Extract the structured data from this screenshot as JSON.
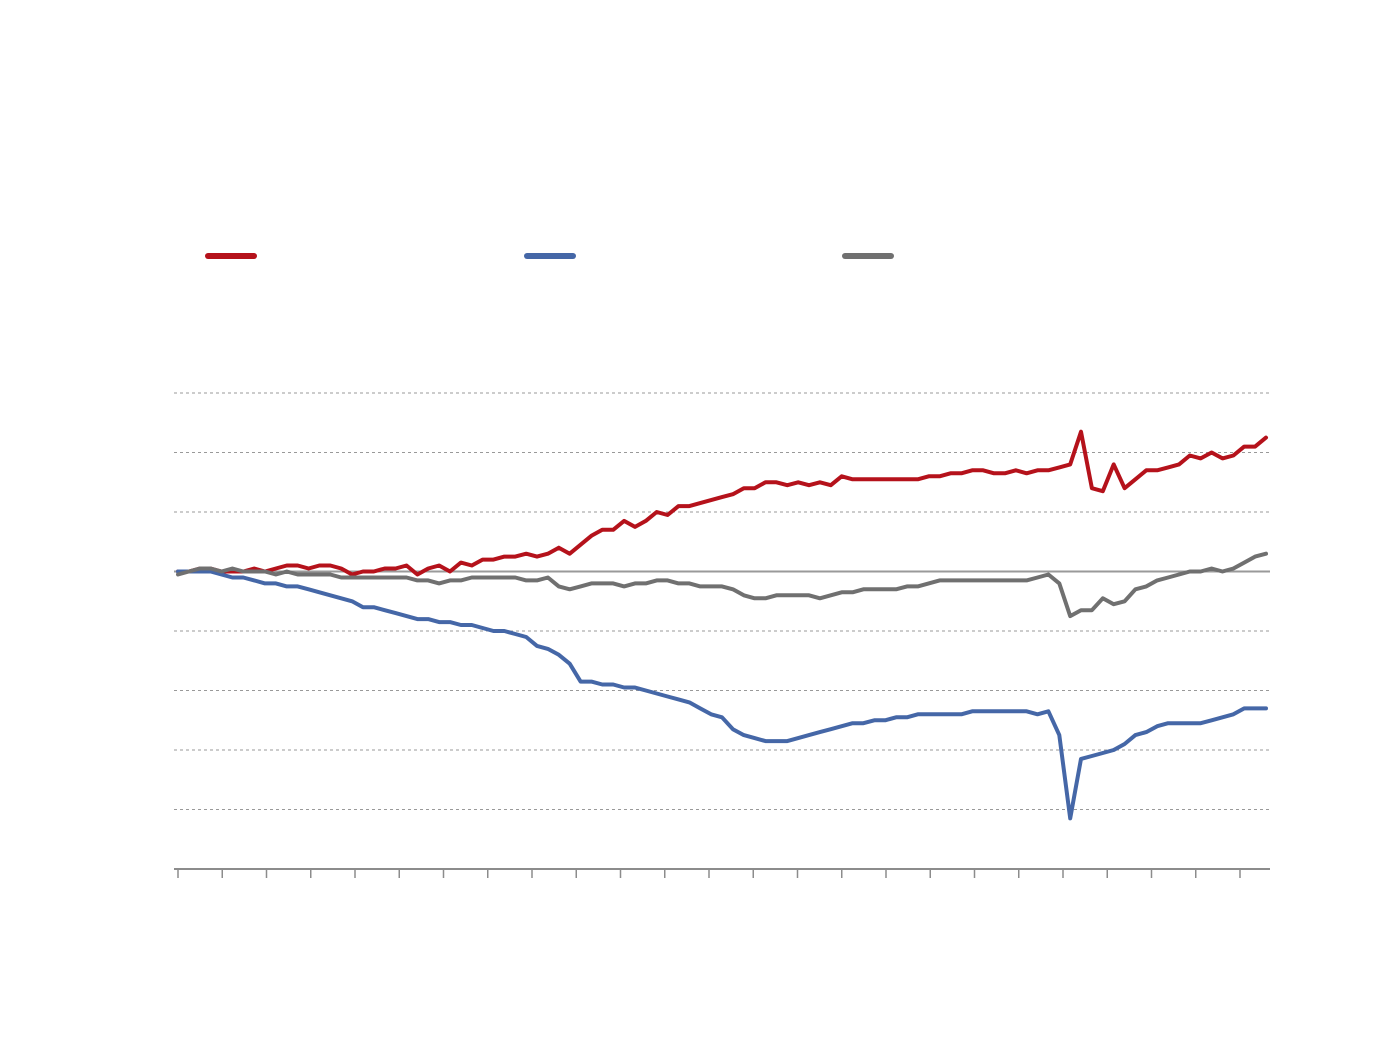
{
  "chart_data": {
    "type": "line",
    "title": "",
    "xlabel": "",
    "ylabel": "",
    "ylim": [
      -5,
      3
    ],
    "ygrid": [
      -4,
      -3,
      -2,
      -1,
      1,
      2,
      3
    ],
    "zero_line": 0,
    "x_ticks": 25,
    "grid": true,
    "legend_position": "top",
    "colors": {
      "gridline": "#999999",
      "zero_line": "#9a9a9a",
      "axis": "#8c8c8c"
    },
    "series": [
      {
        "color": "#b5121b",
        "values": [
          0,
          0,
          0.05,
          0.05,
          0,
          0,
          0,
          0.05,
          0,
          0.05,
          0.1,
          0.1,
          0.05,
          0.1,
          0.1,
          0.05,
          -0.05,
          0,
          0,
          0.05,
          0.05,
          0.1,
          -0.05,
          0.05,
          0.1,
          0,
          0.15,
          0.1,
          0.2,
          0.2,
          0.25,
          0.25,
          0.3,
          0.25,
          0.3,
          0.4,
          0.3,
          0.45,
          0.6,
          0.7,
          0.7,
          0.85,
          0.75,
          0.85,
          1.0,
          0.95,
          1.1,
          1.1,
          1.15,
          1.2,
          1.25,
          1.3,
          1.4,
          1.4,
          1.5,
          1.5,
          1.45,
          1.5,
          1.45,
          1.5,
          1.45,
          1.6,
          1.55,
          1.55,
          1.55,
          1.55,
          1.55,
          1.55,
          1.55,
          1.6,
          1.6,
          1.65,
          1.65,
          1.7,
          1.7,
          1.65,
          1.65,
          1.7,
          1.65,
          1.7,
          1.7,
          1.75,
          1.8,
          2.35,
          1.4,
          1.35,
          1.8,
          1.4,
          1.55,
          1.7,
          1.7,
          1.75,
          1.8,
          1.95,
          1.9,
          2.0,
          1.9,
          1.95,
          2.1,
          2.1,
          2.25
        ]
      },
      {
        "color": "#4567a7",
        "values": [
          0,
          0,
          0,
          0,
          -0.05,
          -0.1,
          -0.1,
          -0.15,
          -0.2,
          -0.2,
          -0.25,
          -0.25,
          -0.3,
          -0.35,
          -0.4,
          -0.45,
          -0.5,
          -0.6,
          -0.6,
          -0.65,
          -0.7,
          -0.75,
          -0.8,
          -0.8,
          -0.85,
          -0.85,
          -0.9,
          -0.9,
          -0.95,
          -1.0,
          -1.0,
          -1.05,
          -1.1,
          -1.25,
          -1.3,
          -1.4,
          -1.55,
          -1.85,
          -1.85,
          -1.9,
          -1.9,
          -1.95,
          -1.95,
          -2.0,
          -2.05,
          -2.1,
          -2.15,
          -2.2,
          -2.3,
          -2.4,
          -2.45,
          -2.65,
          -2.75,
          -2.8,
          -2.85,
          -2.85,
          -2.85,
          -2.8,
          -2.75,
          -2.7,
          -2.65,
          -2.6,
          -2.55,
          -2.55,
          -2.5,
          -2.5,
          -2.45,
          -2.45,
          -2.4,
          -2.4,
          -2.4,
          -2.4,
          -2.4,
          -2.35,
          -2.35,
          -2.35,
          -2.35,
          -2.35,
          -2.35,
          -2.4,
          -2.35,
          -2.75,
          -4.15,
          -3.15,
          -3.1,
          -3.05,
          -3.0,
          -2.9,
          -2.75,
          -2.7,
          -2.6,
          -2.55,
          -2.55,
          -2.55,
          -2.55,
          -2.5,
          -2.45,
          -2.4,
          -2.3,
          -2.3,
          -2.3
        ]
      },
      {
        "color": "#707070",
        "values": [
          -0.05,
          0,
          0.05,
          0.05,
          0,
          0.05,
          0,
          0,
          0,
          -0.05,
          0,
          -0.05,
          -0.05,
          -0.05,
          -0.05,
          -0.1,
          -0.1,
          -0.1,
          -0.1,
          -0.1,
          -0.1,
          -0.1,
          -0.15,
          -0.15,
          -0.2,
          -0.15,
          -0.15,
          -0.1,
          -0.1,
          -0.1,
          -0.1,
          -0.1,
          -0.15,
          -0.15,
          -0.1,
          -0.25,
          -0.3,
          -0.25,
          -0.2,
          -0.2,
          -0.2,
          -0.25,
          -0.2,
          -0.2,
          -0.15,
          -0.15,
          -0.2,
          -0.2,
          -0.25,
          -0.25,
          -0.25,
          -0.3,
          -0.4,
          -0.45,
          -0.45,
          -0.4,
          -0.4,
          -0.4,
          -0.4,
          -0.45,
          -0.4,
          -0.35,
          -0.35,
          -0.3,
          -0.3,
          -0.3,
          -0.3,
          -0.25,
          -0.25,
          -0.2,
          -0.15,
          -0.15,
          -0.15,
          -0.15,
          -0.15,
          -0.15,
          -0.15,
          -0.15,
          -0.15,
          -0.1,
          -0.05,
          -0.2,
          -0.75,
          -0.65,
          -0.65,
          -0.45,
          -0.55,
          -0.5,
          -0.3,
          -0.25,
          -0.15,
          -0.1,
          -0.05,
          0,
          0,
          0.05,
          0,
          0.05,
          0.15,
          0.25,
          0.3
        ]
      }
    ]
  }
}
